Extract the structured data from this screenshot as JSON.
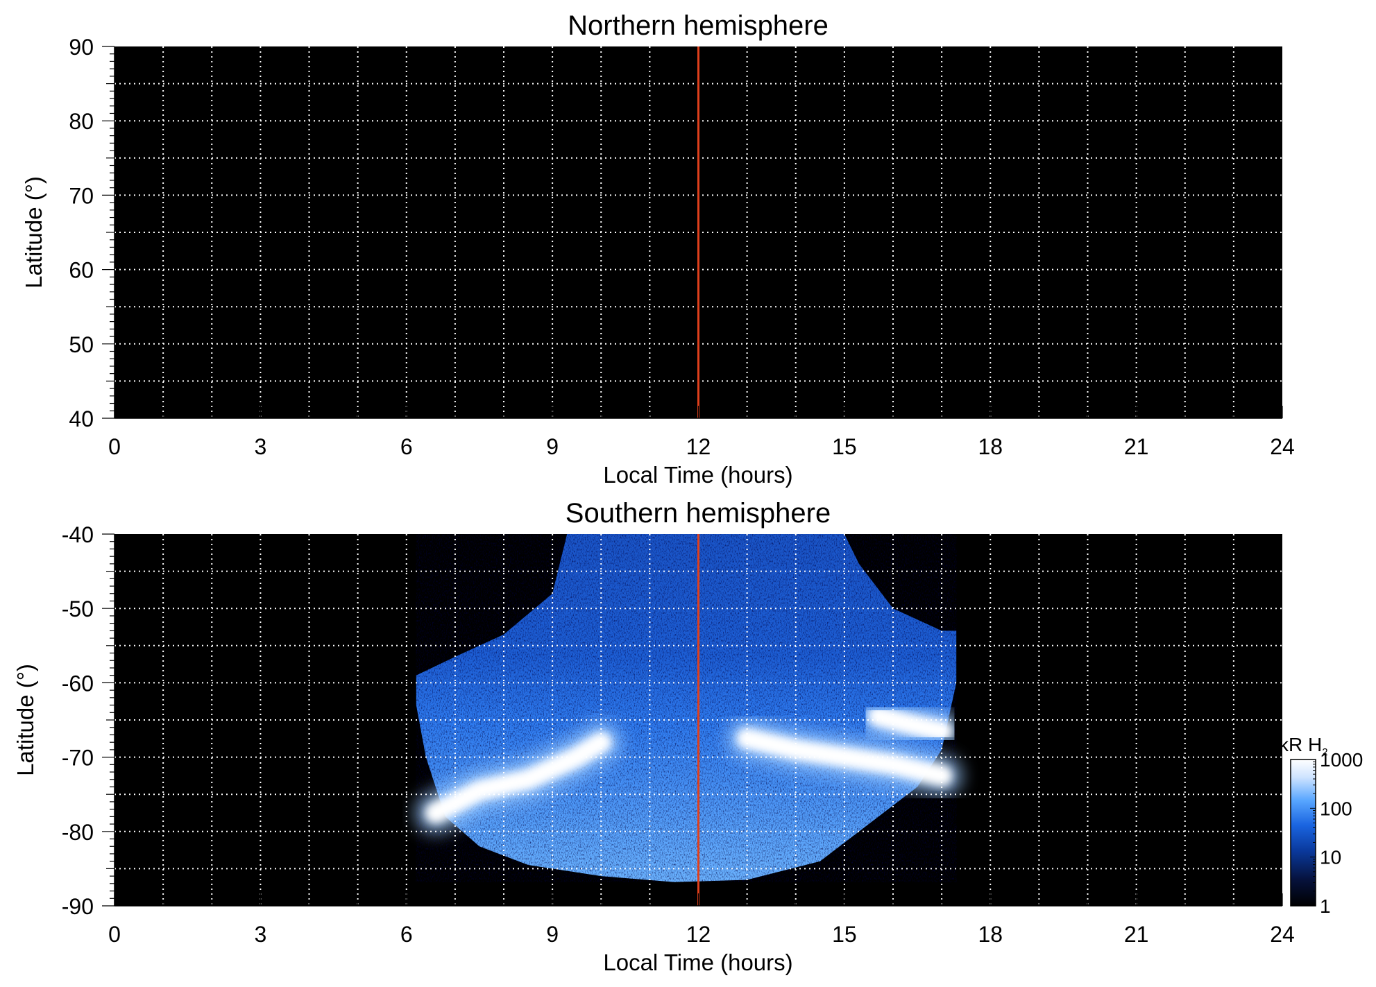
{
  "chart_data": [
    {
      "type": "heatmap",
      "title": "Northern hemisphere",
      "xlabel": "Local Time (hours)",
      "ylabel": "Latitude (°)",
      "xlim": [
        0,
        24
      ],
      "ylim": [
        40,
        90
      ],
      "x_ticks": [
        "0",
        "3",
        "6",
        "9",
        "12",
        "15",
        "18",
        "21",
        "24"
      ],
      "y_ticks": [
        "40",
        "50",
        "60",
        "70",
        "80",
        "90"
      ],
      "grid": true,
      "grid_x_step_hours": 1,
      "grid_y_step_deg": 5,
      "background_color": "#000000",
      "grid_color": "#ffffff",
      "reference_line": {
        "x": 12,
        "color": "#e0401c"
      },
      "emission": []
    },
    {
      "type": "heatmap",
      "title": "Southern hemisphere",
      "xlabel": "Local Time (hours)",
      "ylabel": "Latitude (°)",
      "xlim": [
        0,
        24
      ],
      "ylim": [
        -90,
        -40
      ],
      "x_ticks": [
        "0",
        "3",
        "6",
        "9",
        "12",
        "15",
        "18",
        "21",
        "24"
      ],
      "y_ticks": [
        "-40",
        "-50",
        "-60",
        "-70",
        "-80",
        "-90"
      ],
      "grid": true,
      "grid_x_step_hours": 1,
      "grid_y_step_deg": 5,
      "background_color": "#000000",
      "grid_color": "#ffffff",
      "reference_line": {
        "x": 12,
        "color": "#e0401c"
      },
      "coverage_boundary": [
        [
          6.2,
          -59
        ],
        [
          7.0,
          -56.5
        ],
        [
          8.0,
          -53.5
        ],
        [
          9.0,
          -48
        ],
        [
          9.3,
          -40
        ],
        [
          15.0,
          -40
        ],
        [
          15.3,
          -44
        ],
        [
          16.0,
          -50
        ],
        [
          17.0,
          -53
        ],
        [
          17.3,
          -53
        ],
        [
          17.3,
          -60
        ],
        [
          17.0,
          -69
        ],
        [
          16.5,
          -74
        ],
        [
          15.5,
          -79
        ],
        [
          14.5,
          -84
        ],
        [
          13.0,
          -86.5
        ],
        [
          11.5,
          -86.8
        ],
        [
          10.0,
          -86
        ],
        [
          8.5,
          -84.5
        ],
        [
          7.5,
          -82
        ],
        [
          6.8,
          -78
        ],
        [
          6.4,
          -70
        ],
        [
          6.2,
          -63
        ]
      ],
      "aurora_bands": [
        {
          "lt": [
            6.6,
            7.5,
            8.5,
            9.5,
            10.0
          ],
          "lat": [
            -77.5,
            -74.5,
            -73,
            -70,
            -68
          ]
        },
        {
          "lt": [
            13.0,
            14.0,
            15.0,
            16.0,
            17.0
          ],
          "lat": [
            -67.5,
            -69,
            -70,
            -71,
            -72.5
          ]
        },
        {
          "lt": [
            15.7,
            16.3,
            17.0
          ],
          "lat": [
            -64.5,
            -65.5,
            -66.5
          ]
        }
      ]
    }
  ],
  "colorbar": {
    "unit_label": "kR H",
    "unit_subscript": "2",
    "tick_labels": [
      "1000",
      "100",
      "10",
      "1"
    ],
    "tick_values": [
      1000,
      100,
      10,
      1
    ],
    "scale": "log",
    "range": [
      1,
      1000
    ],
    "colors": [
      "#000000",
      "#06123d",
      "#0a3a9e",
      "#1a64e0",
      "#58a6ff",
      "#cfe4ff",
      "#ffffff"
    ]
  }
}
